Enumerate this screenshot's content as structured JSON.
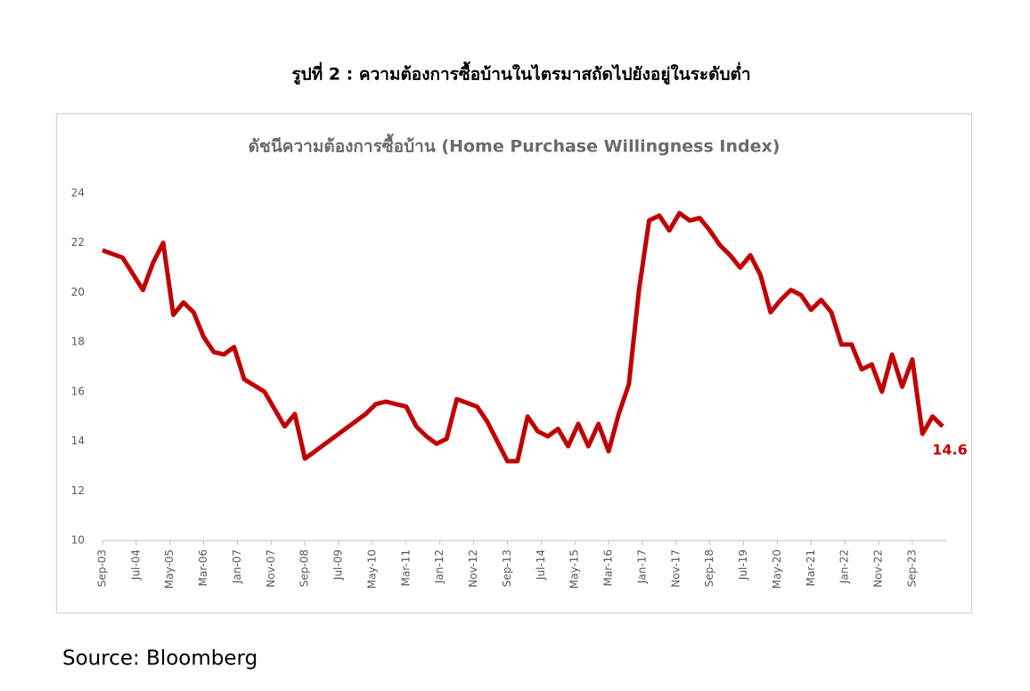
{
  "page_title": "รูปที่ 2 : ความต้องการซื้อบ้านในไตรมาสถัดไปยังอยู่ในระดับต่ำ",
  "source": "Source:  Bloomberg",
  "chart_data": {
    "type": "line",
    "title": "ดัชนีความต้องการซื้อบ้าน (Home Purchase Willingness Index)",
    "color": "#c00000",
    "x": [
      "Sep-03",
      "Dec-03",
      "Mar-04",
      "Jun-04",
      "Sep-04",
      "Dec-04",
      "Mar-05",
      "Jun-05",
      "Sep-05",
      "Dec-05",
      "Mar-06",
      "Jun-06",
      "Sep-06",
      "Dec-06",
      "Mar-07",
      "Jun-07",
      "Sep-07",
      "Dec-07",
      "Mar-08",
      "Jun-08",
      "Sep-08",
      "Dec-08",
      "Mar-09",
      "Jun-09",
      "Sep-09",
      "Dec-09",
      "Mar-10",
      "Jun-10",
      "Sep-10",
      "Dec-10",
      "Mar-11",
      "Jun-11",
      "Sep-11",
      "Dec-11",
      "Mar-12",
      "Jun-12",
      "Sep-12",
      "Dec-12",
      "Mar-13",
      "Jun-13",
      "Sep-13",
      "Dec-13",
      "Mar-14",
      "Jun-14",
      "Sep-14",
      "Dec-14",
      "Mar-15",
      "Jun-15",
      "Sep-15",
      "Dec-15",
      "Mar-16",
      "Jun-16",
      "Sep-16",
      "Dec-16",
      "Mar-17",
      "Jun-17",
      "Sep-17",
      "Dec-17",
      "Mar-18",
      "Jun-18",
      "Sep-18",
      "Dec-18",
      "Mar-19",
      "Jun-19",
      "Sep-19",
      "Dec-19",
      "Mar-20",
      "Jun-20",
      "Sep-20",
      "Dec-20",
      "Mar-21",
      "Jun-21",
      "Sep-21",
      "Dec-21",
      "Mar-22",
      "Jun-22",
      "Sep-22",
      "Dec-22",
      "Mar-23",
      "Jun-23",
      "Sep-23",
      "Dec-23",
      "Mar-24",
      "Jun-24"
    ],
    "values": [
      21.7,
      21.55,
      21.4,
      20.75,
      20.1,
      21.2,
      22.0,
      19.1,
      19.6,
      19.2,
      18.2,
      17.6,
      17.5,
      17.8,
      16.5,
      16.25,
      16.0,
      15.3,
      14.6,
      15.1,
      13.3,
      13.6,
      13.9,
      14.2,
      14.5,
      14.8,
      15.1,
      15.5,
      15.6,
      15.5,
      15.4,
      14.6,
      14.2,
      13.9,
      14.1,
      15.7,
      15.55,
      15.4,
      14.8,
      14.0,
      13.2,
      13.2,
      15.0,
      14.4,
      14.2,
      14.5,
      13.8,
      14.7,
      13.8,
      14.7,
      13.6,
      15.1,
      16.3,
      20.1,
      22.9,
      23.1,
      22.5,
      23.2,
      22.9,
      23.0,
      22.5,
      21.9,
      21.5,
      21.0,
      21.5,
      20.7,
      19.2,
      19.7,
      20.1,
      19.9,
      19.3,
      19.7,
      19.2,
      17.9,
      17.9,
      16.9,
      17.1,
      16.0,
      17.5,
      16.2,
      17.3,
      14.3,
      15.0,
      14.6
    ],
    "xticks": [
      "Sep-03",
      "Jul-04",
      "May-05",
      "Mar-06",
      "Jan-07",
      "Nov-07",
      "Sep-08",
      "Jul-09",
      "May-10",
      "Mar-11",
      "Jan-12",
      "Nov-12",
      "Sep-13",
      "Jul-14",
      "May-15",
      "Mar-16",
      "Jan-17",
      "Nov-17",
      "Sep-18",
      "Jul-19",
      "May-20",
      "Mar-21",
      "Jan-22",
      "Nov-22",
      "Sep-23"
    ],
    "ylim": [
      10,
      24
    ],
    "yticks": [
      10,
      12,
      14,
      16,
      18,
      20,
      22,
      24
    ],
    "grid": false
  }
}
